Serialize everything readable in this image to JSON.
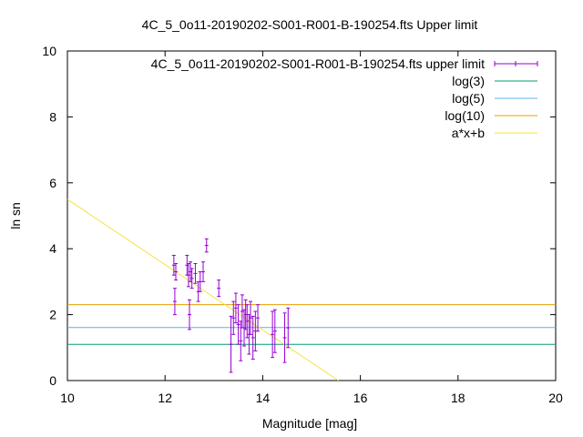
{
  "chart_data": {
    "type": "scatter",
    "title": "4C_5_0o11-20190202-S001-R001-B-190254.fts Upper limit",
    "xlabel": "Magnitude [mag]",
    "ylabel": "ln sn",
    "xlim": [
      10,
      20
    ],
    "ylim": [
      0,
      10
    ],
    "xticks": [
      "10",
      "12",
      "14",
      "16",
      "18",
      "20"
    ],
    "yticks": [
      "0",
      "2",
      "4",
      "6",
      "8",
      "10"
    ],
    "legend_position": "top-right",
    "series": [
      {
        "name": "4C_5_0o11-20190202-S001-R001-B-190254.fts upper limit",
        "kind": "errorbar",
        "color": "#9400d3",
        "points": [
          {
            "x": 12.18,
            "y": 3.5,
            "err": 0.3
          },
          {
            "x": 12.22,
            "y": 3.3,
            "err": 0.25
          },
          {
            "x": 12.2,
            "y": 2.4,
            "err": 0.4
          },
          {
            "x": 12.45,
            "y": 3.5,
            "err": 0.3
          },
          {
            "x": 12.48,
            "y": 3.2,
            "err": 0.35
          },
          {
            "x": 12.52,
            "y": 3.3,
            "err": 0.3
          },
          {
            "x": 12.5,
            "y": 2.0,
            "err": 0.45
          },
          {
            "x": 12.55,
            "y": 3.1,
            "err": 0.3
          },
          {
            "x": 12.62,
            "y": 3.25,
            "err": 0.3
          },
          {
            "x": 12.68,
            "y": 2.7,
            "err": 0.3
          },
          {
            "x": 12.72,
            "y": 3.0,
            "err": 0.3
          },
          {
            "x": 12.78,
            "y": 3.3,
            "err": 0.3
          },
          {
            "x": 12.85,
            "y": 4.1,
            "err": 0.2
          },
          {
            "x": 13.1,
            "y": 2.8,
            "err": 0.25
          },
          {
            "x": 13.35,
            "y": 1.1,
            "err": 0.85
          },
          {
            "x": 13.4,
            "y": 1.9,
            "err": 0.5
          },
          {
            "x": 13.45,
            "y": 2.2,
            "err": 0.45
          },
          {
            "x": 13.5,
            "y": 1.7,
            "err": 0.6
          },
          {
            "x": 13.55,
            "y": 1.2,
            "err": 0.6
          },
          {
            "x": 13.58,
            "y": 2.1,
            "err": 0.5
          },
          {
            "x": 13.62,
            "y": 1.6,
            "err": 0.55
          },
          {
            "x": 13.65,
            "y": 2.0,
            "err": 0.45
          },
          {
            "x": 13.68,
            "y": 1.8,
            "err": 0.5
          },
          {
            "x": 13.72,
            "y": 1.4,
            "err": 0.6
          },
          {
            "x": 13.75,
            "y": 1.9,
            "err": 0.5
          },
          {
            "x": 13.8,
            "y": 1.3,
            "err": 0.65
          },
          {
            "x": 13.85,
            "y": 1.5,
            "err": 0.6
          },
          {
            "x": 13.9,
            "y": 1.9,
            "err": 0.4
          },
          {
            "x": 14.2,
            "y": 1.4,
            "err": 0.7
          },
          {
            "x": 14.25,
            "y": 1.5,
            "err": 0.65
          },
          {
            "x": 14.45,
            "y": 1.3,
            "err": 0.75
          },
          {
            "x": 14.52,
            "y": 1.6,
            "err": 0.6
          }
        ]
      },
      {
        "name": "log(3)",
        "kind": "hline",
        "color": "#009e73",
        "y": 1.0986
      },
      {
        "name": "log(5)",
        "kind": "hline",
        "color": "#56b4e9",
        "y": 1.6094
      },
      {
        "name": "log(10)",
        "kind": "hline",
        "color": "#e69f00",
        "y": 2.3026
      },
      {
        "name": "a*x+b",
        "kind": "fit",
        "color": "#f0e442",
        "line": {
          "x1": 10,
          "y1": 5.5,
          "x2": 15.55,
          "y2": 0
        }
      }
    ]
  }
}
